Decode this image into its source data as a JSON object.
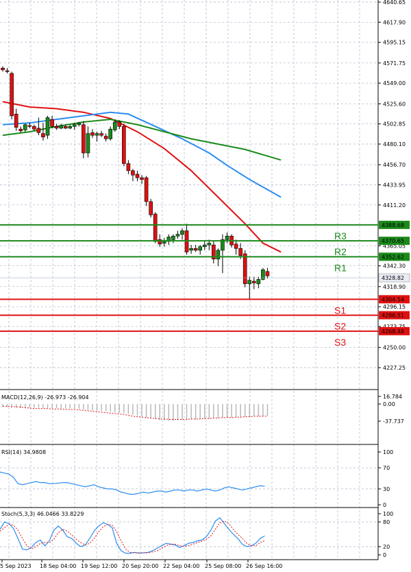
{
  "chart_data": [
    {
      "pane": "price",
      "type": "candlestick",
      "y_ticks": [
        "4640.65",
        "4617.90",
        "4595.15",
        "4571.75",
        "4549.00",
        "4525.60",
        "4502.85",
        "4480.10",
        "4456.70",
        "4433.95",
        "4411.20",
        "4365.05",
        "4342.30",
        "4318.90",
        "4296.15",
        "4273.75",
        "4250.00",
        "4227.25"
      ],
      "ylim": [
        4227.25,
        4640.65
      ],
      "x_labels": [
        "5 Sep 2023",
        "18 Sep 04:00",
        "19 Sep 12:00",
        "20 Sep 20:00",
        "22 Sep 04:00",
        "25 Sep 08:00",
        "26 Sep 16:00"
      ],
      "current_price": {
        "value": 4328.82,
        "label": "4328.82"
      },
      "levels": [
        {
          "name": "R3",
          "value": 4388.68,
          "label": "4388.68",
          "color": "#1a8a1a"
        },
        {
          "name": "R2",
          "value": 4370.65,
          "label": "4370.65",
          "color": "#1a8a1a"
        },
        {
          "name": "R1",
          "value": 4352.62,
          "label": "4352.62",
          "color": "#1a8a1a"
        },
        {
          "name": "S1",
          "value": 4304.54,
          "label": "4304.54",
          "color": "#e01010"
        },
        {
          "name": "S2",
          "value": 4286.51,
          "label": "4286.51",
          "color": "#e01010"
        },
        {
          "name": "S3",
          "value": 4268.48,
          "label": "4268.48",
          "color": "#e01010"
        }
      ],
      "candles": [
        [
          4566,
          4568,
          4562,
          4564
        ],
        [
          4563,
          4566,
          4560,
          4562
        ],
        [
          4560,
          4562,
          4508,
          4512
        ],
        [
          4514,
          4520,
          4495,
          4499
        ],
        [
          4497,
          4500,
          4493,
          4495
        ],
        [
          4496,
          4503,
          4494,
          4502
        ],
        [
          4501,
          4504,
          4498,
          4500
        ],
        [
          4500,
          4502,
          4495,
          4497
        ],
        [
          4498,
          4510,
          4490,
          4493
        ],
        [
          4492,
          4504,
          4484,
          4488
        ],
        [
          4490,
          4512,
          4486,
          4510
        ],
        [
          4508,
          4512,
          4498,
          4500
        ],
        [
          4500,
          4503,
          4496,
          4498
        ],
        [
          4498,
          4503,
          4497,
          4501
        ],
        [
          4500,
          4502,
          4497,
          4498
        ],
        [
          4498,
          4502,
          4497,
          4500
        ],
        [
          4500,
          4504,
          4496,
          4502
        ],
        [
          4502,
          4505,
          4500,
          4504
        ],
        [
          4502,
          4506,
          4464,
          4470
        ],
        [
          4470,
          4500,
          4465,
          4492
        ],
        [
          4493,
          4497,
          4487,
          4490
        ],
        [
          4490,
          4494,
          4483,
          4492
        ],
        [
          4492,
          4495,
          4488,
          4490
        ],
        [
          4489,
          4492,
          4483,
          4486
        ],
        [
          4486,
          4500,
          4484,
          4497
        ],
        [
          4496,
          4508,
          4494,
          4505
        ],
        [
          4505,
          4507,
          4497,
          4500
        ],
        [
          4500,
          4503,
          4455,
          4458
        ],
        [
          4458,
          4462,
          4446,
          4450
        ],
        [
          4450,
          4452,
          4438,
          4445
        ],
        [
          4446,
          4450,
          4438,
          4442
        ],
        [
          4442,
          4445,
          4435,
          4440
        ],
        [
          4442,
          4444,
          4410,
          4415
        ],
        [
          4415,
          4418,
          4397,
          4400
        ],
        [
          4401,
          4403,
          4368,
          4370
        ],
        [
          4372,
          4378,
          4364,
          4367
        ],
        [
          4368,
          4374,
          4364,
          4370
        ],
        [
          4370,
          4378,
          4366,
          4375
        ],
        [
          4372,
          4378,
          4368,
          4376
        ],
        [
          4376,
          4382,
          4373,
          4378
        ],
        [
          4378,
          4385,
          4372,
          4382
        ],
        [
          4382,
          4390,
          4355,
          4358
        ],
        [
          4360,
          4366,
          4356,
          4362
        ],
        [
          4362,
          4366,
          4358,
          4360
        ],
        [
          4360,
          4366,
          4355,
          4364
        ],
        [
          4364,
          4370,
          4360,
          4366
        ],
        [
          4366,
          4372,
          4360,
          4368
        ],
        [
          4366,
          4371,
          4345,
          4350
        ],
        [
          4350,
          4362,
          4342,
          4360
        ],
        [
          4360,
          4378,
          4334,
          4372
        ],
        [
          4372,
          4380,
          4368,
          4376
        ],
        [
          4376,
          4378,
          4363,
          4366
        ],
        [
          4367,
          4372,
          4355,
          4362
        ],
        [
          4362,
          4368,
          4350,
          4354
        ],
        [
          4356,
          4360,
          4318,
          4322
        ],
        [
          4322,
          4330,
          4304,
          4326
        ],
        [
          4325,
          4330,
          4316,
          4323
        ],
        [
          4322,
          4330,
          4317,
          4327
        ],
        [
          4327,
          4340,
          4326,
          4338
        ],
        [
          4336,
          4340,
          4328,
          4331
        ]
      ],
      "ma_series": [
        {
          "color": "#e01010",
          "values": [
            [
              0,
              4528
            ],
            [
              6,
              4522
            ],
            [
              12,
              4520
            ],
            [
              18,
              4516
            ],
            [
              24,
              4509
            ],
            [
              30,
              4494
            ],
            [
              36,
              4475
            ],
            [
              42,
              4450
            ],
            [
              48,
              4420
            ],
            [
              54,
              4390
            ],
            [
              58,
              4368
            ],
            [
              62,
              4358
            ]
          ]
        },
        {
          "color": "#2a8cf0",
          "values": [
            [
              0,
              4502
            ],
            [
              6,
              4504
            ],
            [
              12,
              4508
            ],
            [
              18,
              4512
            ],
            [
              24,
              4516
            ],
            [
              28,
              4514
            ],
            [
              34,
              4500
            ],
            [
              40,
              4486
            ],
            [
              46,
              4470
            ],
            [
              50,
              4456
            ],
            [
              55,
              4440
            ],
            [
              62,
              4420
            ]
          ]
        },
        {
          "color": "#1a8a1a",
          "values": [
            [
              0,
              4490
            ],
            [
              6,
              4494
            ],
            [
              12,
              4500
            ],
            [
              18,
              4505
            ],
            [
              24,
              4508
            ],
            [
              30,
              4502
            ],
            [
              36,
              4494
            ],
            [
              42,
              4486
            ],
            [
              48,
              4480
            ],
            [
              54,
              4474
            ],
            [
              62,
              4462
            ]
          ]
        }
      ]
    },
    {
      "pane": "macd",
      "type": "bar",
      "label": "MACD(12,26,9) -26.973 -26.904",
      "y_ticks": [
        "16.784",
        "0.00",
        "-37.737"
      ],
      "ylim": [
        -37.737,
        16.784
      ],
      "histogram": [
        -6,
        -7,
        -8,
        -8,
        -9,
        -9,
        -8,
        -8,
        -8,
        -9,
        -9,
        -9,
        -9,
        -10,
        -10,
        -10,
        -10,
        -11,
        -12,
        -13,
        -14,
        -15,
        -15,
        -16,
        -17,
        -18,
        -19,
        -20,
        -22,
        -24,
        -26,
        -28,
        -30,
        -32,
        -33,
        -35,
        -36,
        -37,
        -37,
        -36,
        -35,
        -35,
        -34,
        -34,
        -33,
        -33,
        -32,
        -31,
        -31,
        -30,
        -30,
        -30,
        -29,
        -29,
        -28,
        -28,
        -27,
        -27,
        -27,
        -27
      ],
      "signal": [
        -5,
        -5,
        -6,
        -6,
        -7,
        -8,
        -9,
        -10,
        -10,
        -10,
        -10,
        -11,
        -11,
        -11,
        -12,
        -12,
        -12,
        -13,
        -14,
        -15,
        -16,
        -17,
        -18,
        -19,
        -20,
        -21,
        -22,
        -23,
        -25,
        -27,
        -28,
        -29,
        -30,
        -31,
        -32,
        -33,
        -33,
        -34,
        -34,
        -34,
        -34,
        -34,
        -33,
        -33,
        -33,
        -32,
        -32,
        -31,
        -31,
        -30,
        -30,
        -30,
        -29,
        -29,
        -28,
        -28,
        -27,
        -27,
        -27,
        -27
      ]
    },
    {
      "pane": "rsi",
      "type": "line",
      "label": "RSI(14) 34.9808",
      "y_ticks": [
        "100",
        "70",
        "30",
        "0"
      ],
      "ylim": [
        0,
        100
      ],
      "values": [
        62,
        60,
        58,
        52,
        40,
        38,
        40,
        42,
        44,
        42,
        42,
        40,
        40,
        41,
        42,
        42,
        40,
        38,
        36,
        34,
        36,
        38,
        34,
        32,
        30,
        30,
        28,
        24,
        22,
        20,
        20,
        22,
        24,
        22,
        24,
        26,
        26,
        24,
        26,
        28,
        28,
        26,
        28,
        28,
        26,
        28,
        30,
        28,
        26,
        28,
        32,
        34,
        32,
        30,
        28,
        30,
        32,
        34,
        36,
        35
      ]
    },
    {
      "pane": "stoch",
      "type": "line",
      "label": "Stoch(5,3,3) 46.0466 33.8229",
      "y_ticks": [
        "100",
        "80",
        "20",
        "0"
      ],
      "ylim": [
        0,
        100
      ],
      "k": [
        62,
        80,
        76,
        64,
        40,
        14,
        12,
        18,
        30,
        36,
        22,
        34,
        60,
        70,
        60,
        44,
        40,
        28,
        20,
        24,
        40,
        58,
        70,
        78,
        74,
        66,
        28,
        10,
        4,
        4,
        6,
        4,
        5,
        6,
        10,
        16,
        22,
        28,
        26,
        24,
        18,
        22,
        28,
        30,
        34,
        36,
        44,
        60,
        82,
        90,
        76,
        62,
        50,
        40,
        26,
        20,
        22,
        28,
        40,
        46
      ],
      "d": [
        58,
        66,
        74,
        72,
        60,
        40,
        22,
        14,
        20,
        28,
        30,
        30,
        38,
        54,
        62,
        58,
        48,
        38,
        30,
        24,
        28,
        40,
        56,
        68,
        74,
        72,
        56,
        34,
        14,
        6,
        5,
        5,
        5,
        5,
        7,
        10,
        16,
        22,
        26,
        26,
        22,
        21,
        22,
        26,
        30,
        33,
        38,
        46,
        62,
        78,
        82,
        76,
        62,
        50,
        40,
        28,
        22,
        22,
        30,
        34
      ]
    }
  ]
}
